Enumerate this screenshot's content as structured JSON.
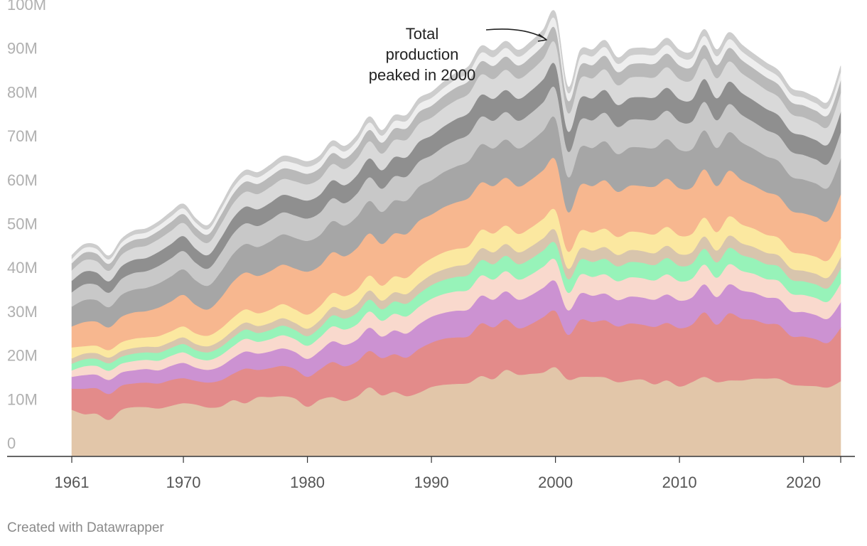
{
  "chart_data": {
    "type": "area",
    "stacked": true,
    "title": "",
    "xlabel": "",
    "ylabel": "",
    "x_range": [
      1961,
      2023
    ],
    "ylim": [
      0,
      100000000
    ],
    "y_ticks": [
      {
        "value": 0,
        "label": "0"
      },
      {
        "value": 10000000,
        "label": "10M"
      },
      {
        "value": 20000000,
        "label": "20M"
      },
      {
        "value": 30000000,
        "label": "30M"
      },
      {
        "value": 40000000,
        "label": "40M"
      },
      {
        "value": 50000000,
        "label": "50M"
      },
      {
        "value": 60000000,
        "label": "60M"
      },
      {
        "value": 70000000,
        "label": "70M"
      },
      {
        "value": 80000000,
        "label": "80M"
      },
      {
        "value": 90000000,
        "label": "90M"
      },
      {
        "value": 100000000,
        "label": "100M"
      }
    ],
    "x_ticks": [
      {
        "value": 1961,
        "label": "1961"
      },
      {
        "value": 1970,
        "label": "1970"
      },
      {
        "value": 1980,
        "label": "1980"
      },
      {
        "value": 1990,
        "label": "1990"
      },
      {
        "value": 2000,
        "label": "2000"
      },
      {
        "value": 2010,
        "label": "2010"
      },
      {
        "value": 2020,
        "label": "2020"
      }
    ],
    "series_unit": "million",
    "anchor_years": [
      1961,
      1962,
      1963,
      1964,
      1965,
      1966,
      1967,
      1968,
      1969,
      1970,
      1971,
      1972,
      1973,
      1974,
      1975,
      1976,
      1977,
      1978,
      1979,
      1980,
      1981,
      1982,
      1983,
      1984,
      1985,
      1986,
      1987,
      1988,
      1989,
      1990,
      1991,
      1992,
      1993,
      1994,
      1995,
      1996,
      1997,
      1998,
      1999,
      2000,
      2001,
      2002,
      2003,
      2004,
      2005,
      2006,
      2007,
      2008,
      2009,
      2010,
      2011,
      2012,
      2013,
      2014,
      2015,
      2016,
      2017,
      2018,
      2019,
      2020,
      2021,
      2022,
      2023
    ],
    "series": [
      {
        "name": "Series 1",
        "color": "#e2c6a9",
        "values": [
          10.5,
          9.5,
          9.6,
          8.2,
          10.5,
          11.1,
          11.1,
          10.8,
          11.4,
          12.0,
          11.7,
          11.0,
          11.2,
          12.7,
          12.0,
          13.4,
          13.4,
          13.6,
          13.1,
          11.2,
          12.8,
          13.4,
          12.5,
          13.5,
          15.6,
          13.8,
          14.6,
          13.6,
          14.4,
          15.7,
          16.2,
          16.4,
          16.6,
          18.2,
          17.5,
          19.6,
          18.5,
          18.7,
          19.0,
          20.2,
          17.4,
          18.0,
          18.0,
          17.9,
          16.8,
          17.2,
          17.4,
          16.3,
          17.2,
          15.8,
          16.8,
          18.0,
          16.8,
          17.2,
          17.2,
          17.6,
          17.6,
          17.6,
          16.3,
          16.0,
          15.9,
          15.6,
          17.0
        ]
      },
      {
        "name": "Series 2",
        "color": "#e38b8a",
        "values": [
          4.8,
          5.8,
          5.8,
          5.9,
          5.5,
          5.4,
          5.6,
          5.7,
          5.9,
          5.7,
          5.4,
          5.7,
          6.0,
          6.0,
          7.9,
          6.2,
          6.6,
          6.9,
          6.7,
          6.8,
          6.9,
          8.0,
          7.9,
          8.0,
          8.3,
          8.5,
          8.6,
          8.8,
          10.0,
          10.1,
          10.5,
          10.6,
          10.7,
          12.0,
          11.8,
          11.5,
          10.6,
          11.3,
          12.6,
          12.8,
          10.2,
          13.0,
          12.5,
          13.0,
          12.7,
          13.0,
          12.5,
          13.1,
          13.1,
          13.3,
          13.1,
          14.7,
          13.1,
          15.3,
          14.1,
          13.4,
          12.5,
          12.3,
          11.0,
          11.2,
          10.7,
          10.2,
          12.2
        ]
      },
      {
        "name": "Series 3",
        "color": "#cc92d2",
        "values": [
          2.7,
          3.1,
          3.1,
          3.2,
          3.0,
          3.0,
          3.1,
          3.0,
          3.2,
          3.5,
          3.0,
          2.9,
          3.2,
          3.6,
          3.9,
          3.7,
          3.8,
          4.0,
          3.9,
          4.1,
          4.2,
          4.7,
          4.9,
          5.0,
          5.3,
          4.9,
          5.4,
          5.5,
          5.6,
          5.9,
          5.9,
          6.1,
          6.1,
          6.3,
          6.3,
          6.4,
          6.5,
          6.6,
          6.7,
          6.8,
          5.6,
          6.0,
          6.0,
          6.1,
          6.0,
          6.1,
          6.2,
          6.2,
          6.5,
          6.3,
          6.2,
          6.4,
          6.3,
          6.6,
          6.4,
          6.2,
          6.0,
          5.9,
          5.7,
          5.6,
          5.5,
          5.5,
          5.8
        ]
      },
      {
        "name": "Series 4",
        "color": "#f9d9cd",
        "values": [
          1.5,
          2.0,
          2.0,
          2.1,
          2.0,
          2.1,
          2.1,
          2.2,
          2.3,
          2.4,
          2.2,
          2.2,
          2.5,
          2.7,
          2.9,
          2.7,
          2.8,
          3.0,
          2.9,
          3.0,
          3.1,
          3.4,
          3.5,
          3.5,
          3.7,
          3.6,
          3.8,
          3.9,
          4.0,
          4.1,
          4.3,
          4.4,
          4.5,
          4.6,
          4.6,
          4.6,
          4.6,
          4.7,
          4.8,
          4.9,
          4.0,
          4.3,
          4.3,
          4.4,
          4.3,
          4.4,
          4.4,
          4.4,
          4.6,
          4.4,
          4.3,
          4.5,
          4.4,
          4.6,
          4.5,
          4.3,
          4.2,
          4.1,
          4.0,
          3.9,
          3.9,
          3.9,
          4.3
        ]
      },
      {
        "name": "Series 5",
        "color": "#97f3b9",
        "values": [
          1.5,
          1.6,
          1.6,
          1.7,
          1.6,
          1.7,
          1.7,
          1.8,
          1.8,
          1.9,
          1.8,
          1.8,
          1.9,
          2.0,
          2.1,
          2.0,
          2.1,
          2.2,
          2.1,
          2.2,
          2.2,
          2.5,
          2.5,
          2.6,
          2.7,
          2.6,
          2.8,
          2.9,
          3.0,
          3.1,
          3.2,
          3.3,
          3.4,
          3.5,
          3.5,
          3.5,
          3.5,
          3.6,
          3.7,
          3.8,
          3.1,
          3.4,
          3.4,
          3.5,
          3.4,
          3.5,
          3.5,
          3.5,
          3.7,
          3.5,
          3.4,
          3.6,
          3.5,
          3.7,
          3.6,
          3.5,
          3.4,
          3.3,
          3.2,
          3.1,
          3.1,
          3.1,
          3.4
        ]
      },
      {
        "name": "Series 6",
        "color": "#d8c5ad",
        "values": [
          1.2,
          1.3,
          1.3,
          1.3,
          1.3,
          1.3,
          1.3,
          1.4,
          1.4,
          1.5,
          1.4,
          1.4,
          1.5,
          1.6,
          1.6,
          1.6,
          1.6,
          1.7,
          1.6,
          1.7,
          1.7,
          1.9,
          1.9,
          2.0,
          2.1,
          2.0,
          2.1,
          2.2,
          2.3,
          2.4,
          2.4,
          2.5,
          2.6,
          2.7,
          2.7,
          2.7,
          2.7,
          2.8,
          2.8,
          2.9,
          2.4,
          2.6,
          2.6,
          2.7,
          2.6,
          2.7,
          2.7,
          2.7,
          2.8,
          2.7,
          2.6,
          2.8,
          2.7,
          2.8,
          2.7,
          2.6,
          2.6,
          2.5,
          2.5,
          2.4,
          2.4,
          2.4,
          2.6
        ]
      },
      {
        "name": "Series 7",
        "color": "#fbe8a0",
        "values": [
          2.5,
          1.7,
          1.7,
          1.7,
          2.0,
          2.1,
          2.1,
          2.4,
          2.4,
          2.5,
          2.4,
          2.4,
          2.7,
          2.9,
          3.0,
          2.9,
          3.0,
          3.2,
          3.1,
          3.2,
          3.2,
          3.2,
          3.2,
          3.3,
          3.4,
          3.4,
          3.6,
          3.7,
          3.8,
          3.7,
          3.9,
          3.9,
          3.9,
          4.2,
          4.3,
          4.2,
          4.2,
          4.3,
          4.4,
          4.6,
          3.9,
          4.0,
          4.1,
          4.2,
          4.1,
          4.2,
          4.2,
          4.3,
          4.3,
          4.2,
          4.2,
          4.3,
          4.2,
          4.4,
          4.3,
          4.2,
          4.1,
          4.0,
          3.9,
          3.9,
          3.9,
          3.9,
          4.3
        ]
      },
      {
        "name": "Series 8",
        "color": "#f7b78f",
        "values": [
          4.8,
          5.5,
          5.5,
          5.2,
          5.8,
          6.0,
          6.0,
          6.5,
          6.8,
          7.2,
          6.5,
          6.0,
          7.0,
          8.2,
          8.4,
          8.5,
          8.8,
          9.0,
          9.3,
          9.8,
          9.2,
          9.3,
          9.1,
          9.5,
          9.6,
          9.5,
          9.8,
          10.0,
          10.5,
          10.0,
          10.3,
          10.6,
          11.0,
          10.8,
          10.8,
          10.9,
          10.8,
          10.9,
          11.1,
          11.5,
          9.0,
          10.4,
          10.6,
          11.0,
          10.3,
          10.5,
          10.6,
          10.9,
          11.0,
          10.8,
          10.6,
          11.0,
          10.5,
          10.4,
          10.1,
          9.8,
          9.7,
          9.5,
          9.3,
          9.2,
          9.1,
          9.0,
          10.0
        ]
      },
      {
        "name": "Series 9",
        "color": "#a6a6a6",
        "values": [
          4.5,
          5.0,
          4.9,
          4.6,
          5.0,
          5.2,
          5.3,
          5.5,
          5.7,
          5.8,
          5.6,
          5.4,
          5.9,
          6.3,
          6.5,
          6.6,
          6.8,
          6.9,
          7.0,
          7.0,
          7.0,
          7.1,
          7.0,
          7.2,
          7.4,
          7.3,
          7.5,
          7.6,
          7.8,
          7.8,
          8.0,
          8.2,
          8.4,
          8.7,
          8.6,
          8.7,
          8.7,
          8.8,
          9.0,
          9.4,
          8.0,
          8.6,
          8.7,
          8.9,
          8.6,
          8.7,
          8.8,
          8.8,
          9.0,
          8.8,
          8.7,
          8.9,
          8.7,
          8.8,
          8.6,
          8.4,
          8.2,
          8.0,
          7.8,
          7.7,
          7.6,
          7.6,
          8.2
        ]
      },
      {
        "name": "Series 10",
        "color": "#c8c8c8",
        "values": [
          3.3,
          3.6,
          3.5,
          3.3,
          3.6,
          3.8,
          3.8,
          4.0,
          4.1,
          4.2,
          4.0,
          3.9,
          4.3,
          4.6,
          4.7,
          4.8,
          4.9,
          5.0,
          5.1,
          5.1,
          5.1,
          5.2,
          5.1,
          5.2,
          5.4,
          5.3,
          5.5,
          5.5,
          5.7,
          5.7,
          5.8,
          6.0,
          6.1,
          6.3,
          6.3,
          6.3,
          6.3,
          6.4,
          6.5,
          6.8,
          5.8,
          6.2,
          6.3,
          6.5,
          6.2,
          6.3,
          6.4,
          6.4,
          6.5,
          6.4,
          6.3,
          6.5,
          6.3,
          6.4,
          6.3,
          6.1,
          6.0,
          5.8,
          5.7,
          5.6,
          5.5,
          5.5,
          5.9
        ]
      },
      {
        "name": "Series 11",
        "color": "#8f8f8f",
        "values": [
          2.6,
          2.9,
          2.8,
          2.6,
          2.9,
          3.0,
          3.0,
          3.2,
          3.3,
          3.4,
          3.2,
          3.1,
          3.4,
          3.6,
          3.8,
          3.8,
          3.9,
          4.0,
          4.1,
          4.1,
          4.1,
          4.1,
          4.1,
          4.2,
          4.3,
          4.2,
          4.4,
          4.4,
          4.5,
          4.5,
          4.6,
          4.8,
          4.9,
          5.0,
          5.0,
          5.0,
          5.0,
          5.1,
          5.2,
          5.4,
          4.6,
          5.0,
          5.0,
          5.2,
          5.0,
          5.0,
          5.1,
          5.1,
          5.2,
          5.1,
          5.0,
          5.2,
          5.0,
          5.1,
          5.0,
          4.9,
          4.8,
          4.6,
          4.5,
          4.5,
          4.4,
          4.4,
          4.7
        ]
      },
      {
        "name": "Series 12",
        "color": "#d9d9d9",
        "values": [
          2.4,
          2.6,
          2.6,
          2.4,
          2.6,
          2.7,
          2.8,
          2.9,
          3.0,
          3.0,
          2.9,
          2.8,
          3.1,
          3.3,
          3.4,
          3.5,
          3.6,
          3.6,
          3.7,
          3.7,
          3.7,
          3.7,
          3.7,
          3.8,
          3.9,
          3.8,
          3.9,
          4.0,
          4.1,
          4.1,
          4.2,
          4.3,
          4.4,
          4.6,
          4.5,
          4.6,
          4.6,
          4.6,
          4.7,
          4.9,
          4.2,
          4.5,
          4.6,
          4.7,
          4.5,
          4.6,
          4.6,
          4.6,
          4.7,
          4.6,
          4.5,
          4.7,
          4.6,
          4.6,
          4.5,
          4.4,
          4.3,
          4.2,
          4.1,
          4.1,
          4.0,
          4.0,
          4.3
        ]
      },
      {
        "name": "Series 13",
        "color": "#b9b9b9",
        "values": [
          1.6,
          1.7,
          1.7,
          1.6,
          1.7,
          1.8,
          1.8,
          1.9,
          2.0,
          2.0,
          1.9,
          1.9,
          2.1,
          2.2,
          2.3,
          2.3,
          2.4,
          2.4,
          2.5,
          2.4,
          2.4,
          2.5,
          2.4,
          2.5,
          2.6,
          2.5,
          2.6,
          2.6,
          2.7,
          2.7,
          2.8,
          2.9,
          2.9,
          3.0,
          3.0,
          3.0,
          3.0,
          3.1,
          3.1,
          3.3,
          2.8,
          3.0,
          3.0,
          3.1,
          3.0,
          3.0,
          3.1,
          3.1,
          3.1,
          3.1,
          3.0,
          3.1,
          3.0,
          3.1,
          3.0,
          2.9,
          2.9,
          2.8,
          2.7,
          2.7,
          2.7,
          2.7,
          2.9
        ]
      },
      {
        "name": "Series 14",
        "color": "#eeeeee",
        "values": [
          1.0,
          1.1,
          1.1,
          1.0,
          1.1,
          1.2,
          1.2,
          1.2,
          1.3,
          1.3,
          1.2,
          1.2,
          1.3,
          1.4,
          1.5,
          1.5,
          1.5,
          1.6,
          1.6,
          1.6,
          1.6,
          1.6,
          1.6,
          1.6,
          1.7,
          1.6,
          1.7,
          1.7,
          1.8,
          1.8,
          1.8,
          1.9,
          1.9,
          2.0,
          2.0,
          2.0,
          2.0,
          2.0,
          2.0,
          2.1,
          1.8,
          2.0,
          2.0,
          2.0,
          1.9,
          2.0,
          2.0,
          2.0,
          2.0,
          2.0,
          2.0,
          2.0,
          2.0,
          2.0,
          2.0,
          1.9,
          1.9,
          1.8,
          1.8,
          1.8,
          1.7,
          1.7,
          1.9
        ]
      },
      {
        "name": "Series 15",
        "color": "#cdcdcd",
        "values": [
          0.8,
          0.8,
          0.8,
          0.8,
          0.8,
          0.9,
          0.9,
          0.9,
          1.0,
          1.0,
          0.9,
          0.9,
          1.0,
          1.1,
          1.1,
          1.1,
          1.1,
          1.2,
          1.2,
          1.2,
          1.2,
          1.2,
          1.2,
          1.2,
          1.3,
          1.2,
          1.3,
          1.3,
          1.3,
          1.3,
          1.4,
          1.4,
          1.4,
          1.5,
          1.5,
          1.5,
          1.5,
          1.5,
          1.5,
          1.6,
          1.4,
          1.5,
          1.5,
          1.5,
          1.4,
          1.5,
          1.5,
          1.5,
          1.5,
          1.5,
          1.5,
          1.5,
          1.5,
          1.5,
          1.5,
          1.4,
          1.4,
          1.4,
          1.3,
          1.3,
          1.3,
          1.3,
          1.4
        ]
      }
    ],
    "annotations": [
      {
        "lines": [
          "Total",
          "production",
          "peaked in 2000"
        ],
        "points_to_year": 2000
      }
    ]
  },
  "footer": {
    "credit": "Created with Datawrapper"
  }
}
